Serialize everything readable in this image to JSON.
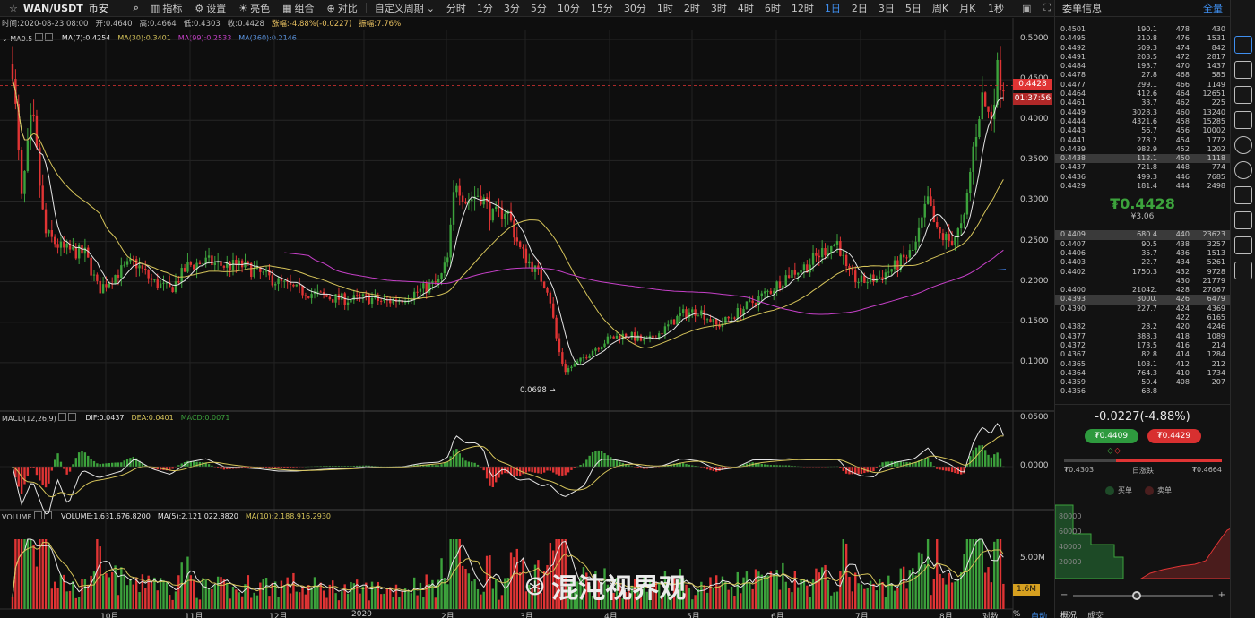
{
  "toolbar": {
    "symbol": "WAN/USDT",
    "exchange": "币安",
    "tools": [
      {
        "icon": "candle-icon",
        "label": "指标"
      },
      {
        "icon": "gear-icon",
        "label": "设置"
      },
      {
        "icon": "bulb-icon",
        "label": "亮色"
      },
      {
        "icon": "combo-icon",
        "label": "组合"
      },
      {
        "icon": "compare-icon",
        "label": "对比"
      }
    ],
    "custom_period": "自定义周期",
    "periods": [
      "分时",
      "1分",
      "3分",
      "5分",
      "10分",
      "15分",
      "30分",
      "1时",
      "2时",
      "3时",
      "4时",
      "6时",
      "12时",
      "1日",
      "2日",
      "3日",
      "5日",
      "周K",
      "月K"
    ],
    "active_period": "1日",
    "refresh": "1秒"
  },
  "infobar": {
    "time": "时间:2020-08-23 08:00",
    "open": "开:0.4640",
    "high": "高:0.4664",
    "low": "低:0.4303",
    "close": "收:0.4428",
    "change": "涨幅:-4.88%(-0.0227)",
    "amp": "振幅:7.76%"
  },
  "ma": {
    "name": "MA0.5",
    "ma7": "MA(7):0.4254",
    "ma30": "MA(30):0.3401",
    "ma99": "MA(99):0.2533",
    "ma360": "MA(360):0.2146"
  },
  "macd": {
    "name": "MACD(12,26,9)",
    "dif": "DIF:0.0437",
    "dea": "DEA:0.0401",
    "macd": "MACD:0.0071"
  },
  "volume": {
    "name": "VOLUME",
    "vol": "VOLUME:1,631,676.8200",
    "ma5": "MA(5):2,121,022.8820",
    "ma10": "MA(10):2,188,916.2930"
  },
  "price_axis": [
    "0.5000",
    "0.4500",
    "0.4000",
    "0.3500",
    "0.3000",
    "0.2500",
    "0.2000",
    "0.1500",
    "0.1000"
  ],
  "macd_axis": [
    "0.0500",
    "0.0000"
  ],
  "vol_axis": [
    "5.00M"
  ],
  "current_price": "0.4428",
  "countdown": "01:37:56",
  "low_marker": "0.0698",
  "vol_tag": "1.6M",
  "x_labels": [
    "10月",
    "11月",
    "12月",
    "2020",
    "2月",
    "3月",
    "4月",
    "5月",
    "6月",
    "7月",
    "8月",
    "对数",
    "%",
    "自动"
  ],
  "colors": {
    "up": "#3ca23c",
    "down": "#e03434",
    "ma7": "#e6e6e6",
    "ma30": "#d6c45a",
    "ma99": "#c640c8",
    "ma360": "#3c78d8"
  },
  "chart_data": {
    "type": "candlestick",
    "series": [
      {
        "name": "MA(7)"
      },
      {
        "name": "MA(30)"
      },
      {
        "name": "MA(99)"
      },
      {
        "name": "MA(360)"
      }
    ],
    "ylim": [
      0.06,
      0.5
    ],
    "close": [
      0.4428
    ],
    "low_marker_value": 0.0698
  },
  "panel": {
    "title": "委单信息",
    "all": "全量",
    "asks": [
      [
        "0.4501",
        "190.1",
        "478",
        "430"
      ],
      [
        "0.4495",
        "210.8",
        "476",
        "1531"
      ],
      [
        "0.4492",
        "509.3",
        "474",
        "842"
      ],
      [
        "0.4491",
        "203.5",
        "472",
        "2817"
      ],
      [
        "0.4484",
        "193.7",
        "470",
        "1437"
      ],
      [
        "0.4478",
        "27.8",
        "468",
        "585"
      ],
      [
        "0.4477",
        "299.1",
        "466",
        "1149"
      ],
      [
        "0.4464",
        "412.6",
        "464",
        "12651"
      ],
      [
        "0.4461",
        "33.7",
        "462",
        "225"
      ],
      [
        "0.4449",
        "3028.3",
        "460",
        "13240"
      ],
      [
        "0.4444",
        "4321.6",
        "458",
        "15285"
      ],
      [
        "0.4443",
        "56.7",
        "456",
        "10002"
      ],
      [
        "0.4441",
        "278.2",
        "454",
        "1772"
      ],
      [
        "0.4439",
        "982.9",
        "452",
        "1202"
      ],
      [
        "0.4438",
        "112.1",
        "450",
        "1118"
      ],
      [
        "0.4437",
        "721.8",
        "448",
        "774"
      ],
      [
        "0.4436",
        "499.3",
        "446",
        "7685"
      ],
      [
        "0.4429",
        "181.4",
        "444",
        "2498"
      ]
    ],
    "last_price": "₮0.4428",
    "last_cny": "¥3.06",
    "bids": [
      [
        "0.4409",
        "680.4",
        "440",
        "23623"
      ],
      [
        "0.4407",
        "90.5",
        "438",
        "3257"
      ],
      [
        "0.4406",
        "35.7",
        "436",
        "1513"
      ],
      [
        "0.4403",
        "22.7",
        "434",
        "5261"
      ],
      [
        "0.4402",
        "1750.3",
        "432",
        "9728"
      ],
      [
        "",
        "",
        "430",
        "21779"
      ],
      [
        "0.4400",
        "21042.",
        "428",
        "27067"
      ],
      [
        "0.4393",
        "3000.",
        "426",
        "6479"
      ],
      [
        "0.4390",
        "227.7",
        "424",
        "4369"
      ],
      [
        "",
        "",
        "422",
        "6165"
      ],
      [
        "0.4382",
        "28.2",
        "420",
        "4246"
      ],
      [
        "0.4377",
        "388.3",
        "418",
        "1089"
      ],
      [
        "0.4372",
        "173.5",
        "416",
        "214"
      ],
      [
        "0.4367",
        "82.8",
        "414",
        "1284"
      ],
      [
        "0.4365",
        "103.1",
        "412",
        "212"
      ],
      [
        "0.4364",
        "764.3",
        "410",
        "1734"
      ],
      [
        "0.4359",
        "50.4",
        "408",
        "207"
      ],
      [
        "0.4356",
        "68.8",
        "",
        ""
      ]
    ],
    "change": "-0.0227(-4.88%)",
    "bid_btn": "₮0.4409",
    "ask_btn": "₮0.4429",
    "day_low": "₮0.4303",
    "day_label": "日涨跌",
    "day_high": "₮0.4664",
    "legend_buy": "买单",
    "legend_sell": "卖单",
    "depth_axis": [
      "80000",
      "60000",
      "40000",
      "20000"
    ],
    "tabs": [
      "概况",
      "成交"
    ]
  },
  "watermark": "混沌视界观"
}
